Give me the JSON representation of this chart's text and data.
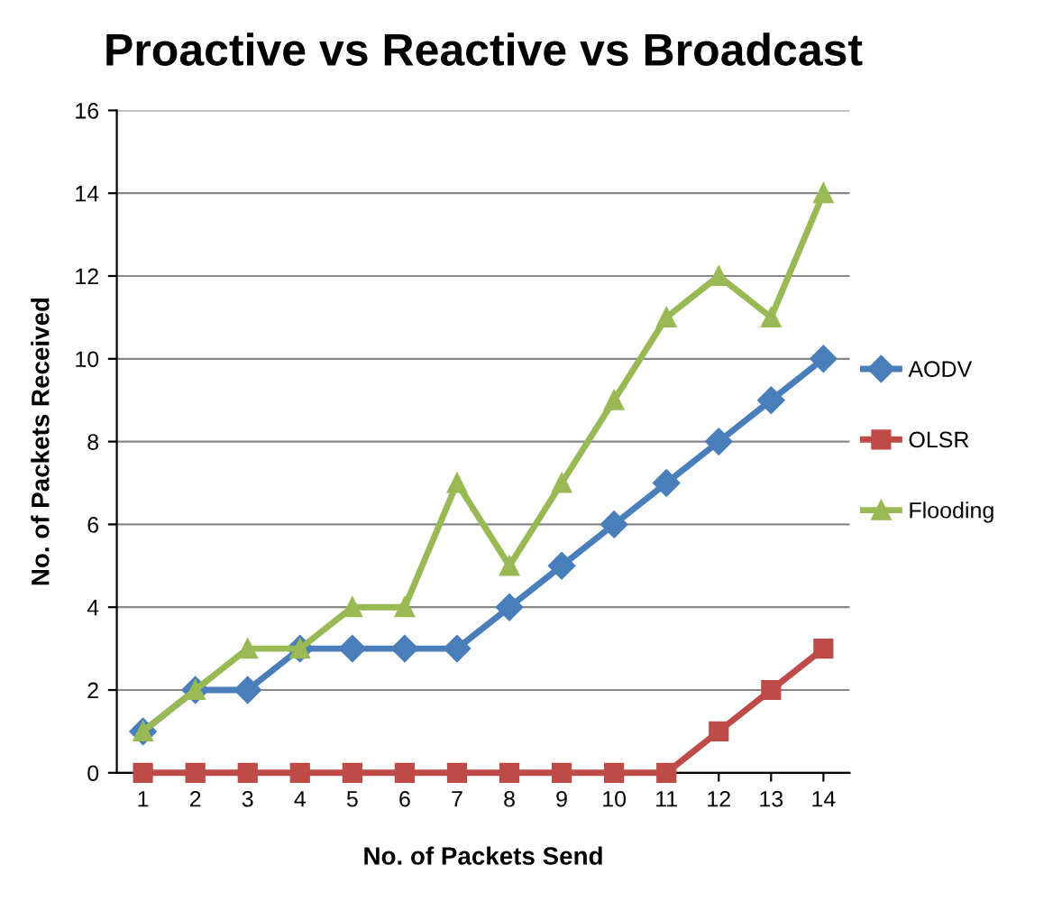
{
  "chart_data": {
    "type": "line",
    "title": "Proactive vs Reactive vs Broadcast",
    "xlabel": "No. of Packets Send",
    "ylabel": "No. of Packets Received",
    "categories": [
      "1",
      "2",
      "3",
      "4",
      "5",
      "6",
      "7",
      "8",
      "9",
      "10",
      "11",
      "12",
      "13",
      "14"
    ],
    "series": [
      {
        "name": "AODV",
        "color": "#4a7ebb",
        "marker": "diamond",
        "values": [
          1,
          2,
          2,
          3,
          3,
          3,
          3,
          4,
          5,
          6,
          7,
          8,
          9,
          10
        ]
      },
      {
        "name": "OLSR",
        "color": "#be4b48",
        "marker": "square",
        "values": [
          0,
          0,
          0,
          0,
          0,
          0,
          0,
          0,
          0,
          0,
          0,
          1,
          2,
          3
        ]
      },
      {
        "name": "Flooding",
        "color": "#98b954",
        "marker": "triangle",
        "values": [
          1,
          2,
          3,
          3,
          4,
          4,
          7,
          5,
          7,
          9,
          11,
          12,
          11,
          14
        ]
      }
    ],
    "ylim": [
      0,
      16
    ],
    "yticks": [
      0,
      2,
      4,
      6,
      8,
      10,
      12,
      14,
      16
    ],
    "grid": "y",
    "legend": "right"
  }
}
